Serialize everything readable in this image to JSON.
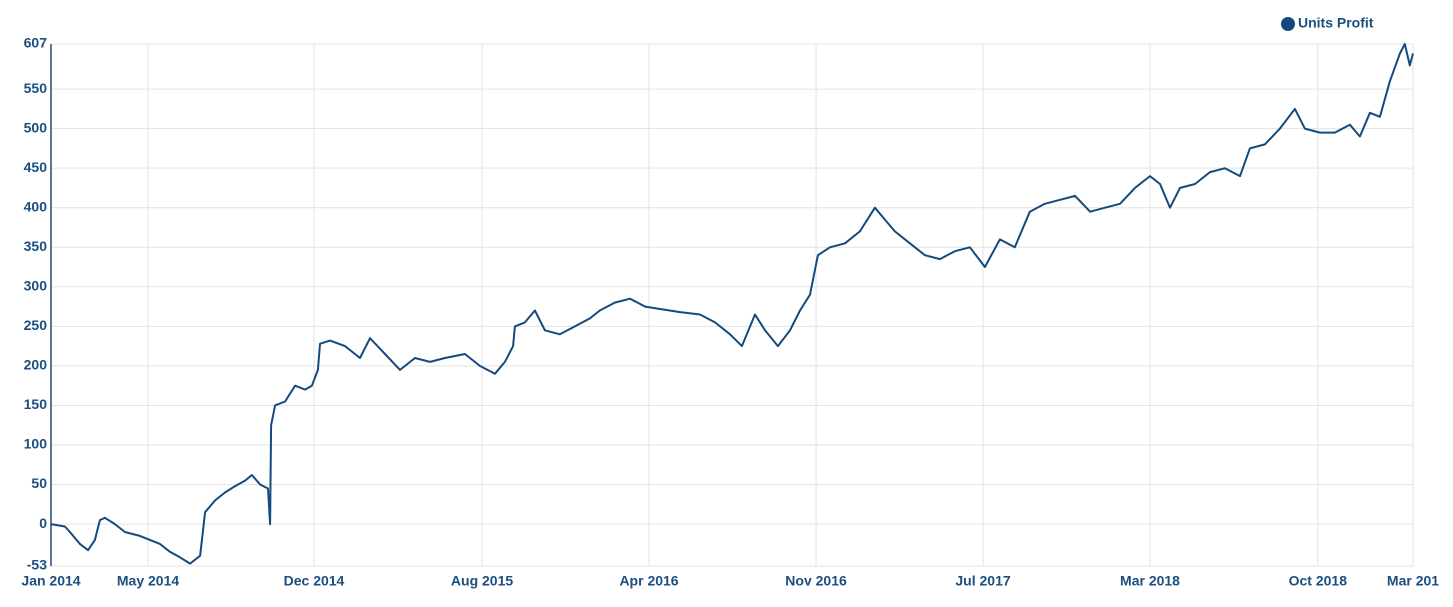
{
  "chart_data": {
    "type": "line",
    "x": [
      2014.0,
      2014.053,
      2014.072,
      2014.11,
      2014.141,
      2014.167,
      2014.186,
      2014.205,
      2014.243,
      2014.281,
      2014.338,
      2014.376,
      2014.414,
      2014.452,
      2014.49,
      2014.529,
      2014.567,
      2014.586,
      2014.624,
      2014.662,
      2014.7,
      2014.738,
      2014.764,
      2014.795,
      2014.825,
      2014.833,
      2014.837,
      2014.852,
      2014.89,
      2014.928,
      2014.966,
      2014.992,
      2015.015,
      2015.023,
      2015.061,
      2015.118,
      2015.175,
      2015.213,
      2015.27,
      2015.327,
      2015.384,
      2015.441,
      2015.498,
      2015.574,
      2015.631,
      2015.688,
      2015.726,
      2015.757,
      2015.764,
      2015.802,
      2015.84,
      2015.878,
      2015.935,
      2015.992,
      2016.049,
      2016.087,
      2016.144,
      2016.202,
      2016.259,
      2016.316,
      2016.392,
      2016.468,
      2016.525,
      2016.582,
      2016.627,
      2016.677,
      2016.715,
      2016.764,
      2016.81,
      2016.848,
      2016.886,
      2016.916,
      2016.962,
      2017.019,
      2017.076,
      2017.133,
      2017.171,
      2017.209,
      2017.266,
      2017.323,
      2017.38,
      2017.437,
      2017.494,
      2017.551,
      2017.608,
      2017.665,
      2017.722,
      2017.779,
      2017.837,
      2017.894,
      2017.951,
      2018.008,
      2018.065,
      2018.122,
      2018.179,
      2018.217,
      2018.255,
      2018.293,
      2018.35,
      2018.407,
      2018.464,
      2018.521,
      2018.559,
      2018.616,
      2018.673,
      2018.73,
      2018.768,
      2018.825,
      2018.882,
      2018.939,
      2018.977,
      2019.015,
      2019.053,
      2019.091,
      2019.129,
      2019.148,
      2019.167,
      2019.179
    ],
    "series": [
      {
        "name": "Units Profit",
        "color": "#154a7e",
        "values": [
          0,
          -3,
          -10,
          -25,
          -33,
          -20,
          5,
          8,
          0,
          -10,
          -15,
          -20,
          -25,
          -35,
          -42,
          -50,
          -40,
          15,
          30,
          40,
          48,
          55,
          62,
          50,
          45,
          0,
          125,
          150,
          155,
          175,
          170,
          175,
          195,
          228,
          232,
          225,
          210,
          235,
          215,
          195,
          210,
          205,
          210,
          215,
          200,
          190,
          205,
          225,
          250,
          255,
          270,
          245,
          240,
          250,
          260,
          270,
          280,
          285,
          275,
          272,
          268,
          265,
          255,
          240,
          225,
          265,
          245,
          225,
          245,
          270,
          290,
          340,
          350,
          355,
          370,
          400,
          385,
          370,
          355,
          340,
          335,
          345,
          350,
          325,
          360,
          350,
          395,
          405,
          410,
          415,
          395,
          400,
          405,
          425,
          440,
          430,
          400,
          425,
          430,
          445,
          450,
          440,
          475,
          480,
          500,
          525,
          500,
          495,
          495,
          505,
          490,
          520,
          515,
          560,
          595,
          607,
          580,
          595
        ]
      }
    ],
    "xlim": [
      2014.0,
      2019.179
    ],
    "xticks": [
      {
        "value": 2014.0,
        "label": "Jan 2014"
      },
      {
        "value": 2014.369,
        "label": "May 2014"
      },
      {
        "value": 2015.0,
        "label": "Dec 2014"
      },
      {
        "value": 2015.639,
        "label": "Aug 2015"
      },
      {
        "value": 2016.274,
        "label": "Apr 2016"
      },
      {
        "value": 2016.909,
        "label": "Nov 2016"
      },
      {
        "value": 2017.544,
        "label": "Jul 2017"
      },
      {
        "value": 2018.179,
        "label": "Mar 2018"
      },
      {
        "value": 2018.817,
        "label": "Oct 2018"
      },
      {
        "value": 2019.179,
        "label": "Mar 201"
      }
    ],
    "ylim": [
      -53,
      607
    ],
    "yticks": [
      -53,
      0,
      50,
      100,
      150,
      200,
      250,
      300,
      350,
      400,
      450,
      500,
      550,
      607
    ],
    "grid": true,
    "legend": "top-right"
  }
}
